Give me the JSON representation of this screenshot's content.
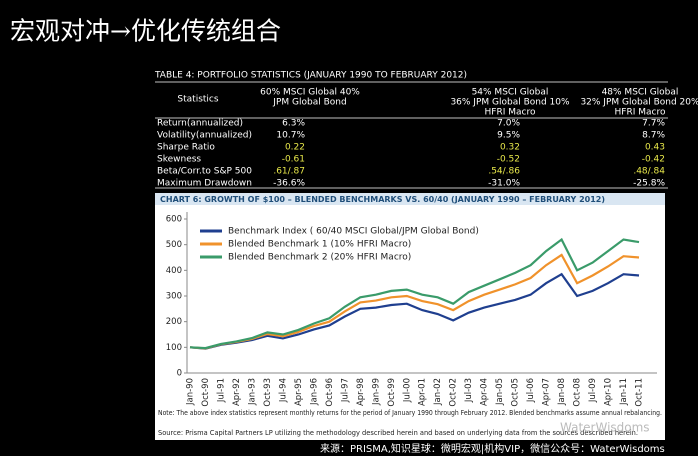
{
  "slide_title": "宏观对冲→优化传统组合",
  "table": {
    "title": "TABLE 4: PORTFOLIO STATISTICS (JANUARY 1990 TO FEBRUARY 2012)",
    "columns": [
      [
        "Statistics"
      ],
      [
        "60% MSCI Global 40%",
        "JPM Global Bond"
      ],
      [
        "54% MSCI Global",
        "36% JPM Global Bond 10%",
        "HFRI Macro"
      ],
      [
        "48% MSCI Global",
        "32% JPM Global Bond 20%",
        "HFRI Macro"
      ]
    ],
    "rows": [
      [
        "Return(annualized)",
        "6.3%",
        "7.0%",
        "7.7%"
      ],
      [
        "Volatility(annualized)",
        "10.7%",
        "9.5%",
        "8.7%"
      ],
      [
        "Sharpe Ratio",
        "0.22",
        "0.32",
        "0.43"
      ],
      [
        "Skewness",
        "-0.61",
        "-0.52",
        "-0.42"
      ],
      [
        "Beta/Corr.to S&P 500",
        ".61/.87",
        ".54/.86",
        ".48/.84"
      ],
      [
        "Maximum Drawdown",
        "-36.6%",
        "-31.0%",
        "-25.8%"
      ]
    ]
  },
  "chart_data": {
    "type": "line",
    "title": "CHART 6: GROWTH OF $100 – BLENDED BENCHMARKS VS. 60/40 (JANUARY 1990 – FEBRUARY 2012)",
    "categories": [
      "Jan-90",
      "Oct-90",
      "Jul-91",
      "Apr-92",
      "Jan-93",
      "Oct-93",
      "Jul-94",
      "Apr-95",
      "Jan-96",
      "Oct-96",
      "Jul-97",
      "Apr-98",
      "Jan-99",
      "Oct-99",
      "Jul-00",
      "Apr-01",
      "Jan-02",
      "Oct-02",
      "Jul-03",
      "Apr-04",
      "Jan-05",
      "Oct-05",
      "Jul-06",
      "Apr-07",
      "Jan-08",
      "Oct-08",
      "Jul-09",
      "Apr-10",
      "Jan-11",
      "Oct-11"
    ],
    "series": [
      {
        "name": "Benchmark Index ( 60/40 MSCI Global/JPM Global Bond)",
        "color": "#1f3f8f",
        "values": [
          100,
          95,
          110,
          118,
          128,
          145,
          135,
          150,
          170,
          185,
          220,
          250,
          255,
          265,
          270,
          245,
          230,
          205,
          235,
          255,
          270,
          285,
          305,
          350,
          385,
          300,
          320,
          350,
          385,
          380
        ]
      },
      {
        "name": "Blended Benchmark 1 (10% HFRI Macro)",
        "color": "#f0922b",
        "values": [
          100,
          96,
          112,
          121,
          133,
          152,
          143,
          160,
          183,
          200,
          240,
          275,
          282,
          295,
          300,
          280,
          268,
          245,
          280,
          305,
          325,
          345,
          370,
          420,
          460,
          350,
          380,
          415,
          455,
          450
        ]
      },
      {
        "name": "Blended Benchmark 2 (20% HFRI Macro)",
        "color": "#3a9b6a",
        "values": [
          100,
          97,
          113,
          123,
          136,
          158,
          150,
          168,
          193,
          213,
          258,
          295,
          305,
          320,
          325,
          305,
          295,
          270,
          315,
          340,
          365,
          390,
          420,
          475,
          520,
          400,
          430,
          475,
          520,
          510
        ]
      }
    ],
    "ylim": [
      0,
      600
    ],
    "yticks": [
      0,
      100,
      200,
      300,
      400,
      500,
      600
    ],
    "grid": false,
    "note": "Note: The above index statistics represent monthly returns for the period of January 1990 through February 2012. Blended benchmarks assume annual rebalancing.",
    "source": "Source: Prisma Capital Partners LP utilizing the methodology described herein and based on underlying data from the sources described herein."
  },
  "footer": "来源：PRISMA,知识星球：微明宏观|机构VIP，微信公众号：WaterWisdoms",
  "watermark": "WaterWisdoms"
}
